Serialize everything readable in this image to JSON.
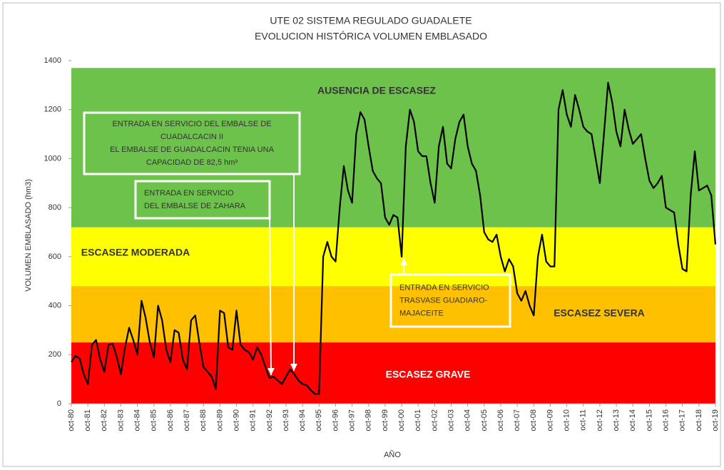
{
  "chart_data": {
    "type": "line",
    "title": "UTE 02 SISTEMA REGULADO GUADALETE",
    "subtitle": "EVOLUCION HISTÓRICA  VOLUMEN EMBLASADO",
    "y_label": "VOLUMEN EMBLASADO (hm3)",
    "x_label": "AÑO",
    "ylim": [
      0,
      1400
    ],
    "yticks": [
      0,
      200,
      400,
      600,
      800,
      1000,
      1200,
      1400
    ],
    "zones": [
      {
        "name": "ESCASEZ  GRAVE",
        "from": 0,
        "to": 250,
        "color": "#ff0000"
      },
      {
        "name": "ESCASEZ  SEVERA",
        "from": 250,
        "to": 480,
        "color": "#ffc000"
      },
      {
        "name": "ESCASEZ  MODERADA",
        "from": 480,
        "to": 720,
        "color": "#ffff00"
      },
      {
        "name": "AUSENCIA DE ESCASEZ",
        "from": 720,
        "to": 1370,
        "color": "#6cc24a"
      }
    ],
    "annotations": [
      {
        "lines": [
          "ENTRADA EN SERVICIO DEL EMBALSE DE",
          "CUADALCACIN II",
          "EL EMBALSE DE GUADALCACIN TENIA UNA",
          "CAPACIDAD DE 82,5 hm³"
        ]
      },
      {
        "lines": [
          "ENTRADA EN SERVICIO",
          "DEL EMBALSE DE ZAHARA"
        ]
      },
      {
        "lines": [
          "ENTRADA EN SERVICIO",
          "TRASVASE GUADIARO-",
          "MAJACEITE"
        ]
      }
    ],
    "categories": [
      "oct-80",
      null,
      null,
      null,
      "oct-81",
      null,
      null,
      null,
      "oct-82",
      null,
      null,
      null,
      "oct-83",
      null,
      null,
      null,
      "oct-84",
      null,
      null,
      null,
      "oct-85",
      null,
      null,
      null,
      "oct-86",
      null,
      null,
      null,
      "oct-87",
      null,
      null,
      null,
      "oct-88",
      null,
      null,
      null,
      "oct-89",
      null,
      null,
      null,
      "oct-90",
      null,
      null,
      null,
      "oct-91",
      null,
      null,
      null,
      "oct-92",
      null,
      null,
      null,
      "oct-93",
      null,
      null,
      null,
      "oct-94",
      null,
      null,
      null,
      "oct-95",
      null,
      null,
      null,
      "oct-96",
      null,
      null,
      null,
      "oct-97",
      null,
      null,
      null,
      "oct-98",
      null,
      null,
      null,
      "oct-99",
      null,
      null,
      null,
      "oct-00",
      null,
      null,
      null,
      "oct-01",
      null,
      null,
      null,
      "oct-02",
      null,
      null,
      null,
      "oct-03",
      null,
      null,
      null,
      "oct-04",
      null,
      null,
      null,
      "oct-05",
      null,
      null,
      null,
      "oct-06",
      null,
      null,
      null,
      "oct-07",
      null,
      null,
      null,
      "oct-08",
      null,
      null,
      null,
      "oct-09",
      null,
      null,
      null,
      "oct-10",
      null,
      null,
      null,
      "oct-11",
      null,
      null,
      null,
      "oct-12",
      null,
      null,
      null,
      "oct-13",
      null,
      null,
      null,
      "oct-14",
      null,
      null,
      null,
      "oct-15",
      null,
      null,
      null,
      "oct-16",
      null,
      null,
      null,
      "oct-17",
      null,
      null,
      null,
      "oct-18",
      null,
      null,
      null,
      "oct-19"
    ],
    "series": [
      {
        "color": "#000000",
        "values": [
          170,
          195,
          185,
          120,
          80,
          240,
          260,
          180,
          130,
          240,
          245,
          190,
          120,
          230,
          310,
          260,
          200,
          420,
          350,
          250,
          190,
          400,
          340,
          220,
          170,
          300,
          290,
          180,
          140,
          340,
          360,
          250,
          150,
          130,
          110,
          60,
          380,
          370,
          230,
          220,
          380,
          240,
          220,
          210,
          180,
          230,
          200,
          150,
          105,
          110,
          95,
          80,
          110,
          140,
          120,
          95,
          80,
          75,
          55,
          40,
          40,
          600,
          660,
          600,
          580,
          800,
          970,
          870,
          820,
          1100,
          1190,
          1160,
          1050,
          950,
          920,
          900,
          760,
          730,
          770,
          760,
          600,
          1050,
          1200,
          1150,
          1030,
          1010,
          1010,
          900,
          820,
          1050,
          1130,
          980,
          960,
          1080,
          1150,
          1180,
          1050,
          980,
          950,
          850,
          700,
          670,
          660,
          690,
          600,
          540,
          590,
          560,
          450,
          420,
          460,
          400,
          360,
          600,
          690,
          580,
          560,
          560,
          1200,
          1280,
          1180,
          1130,
          1260,
          1200,
          1130,
          1110,
          1100,
          1000,
          900,
          1100,
          1310,
          1230,
          1110,
          1050,
          1200,
          1120,
          1060,
          1080,
          1100,
          1000,
          910,
          880,
          900,
          930,
          800,
          790,
          780,
          650,
          550,
          540,
          850,
          1030,
          870,
          880,
          890,
          850,
          650
        ]
      }
    ]
  }
}
